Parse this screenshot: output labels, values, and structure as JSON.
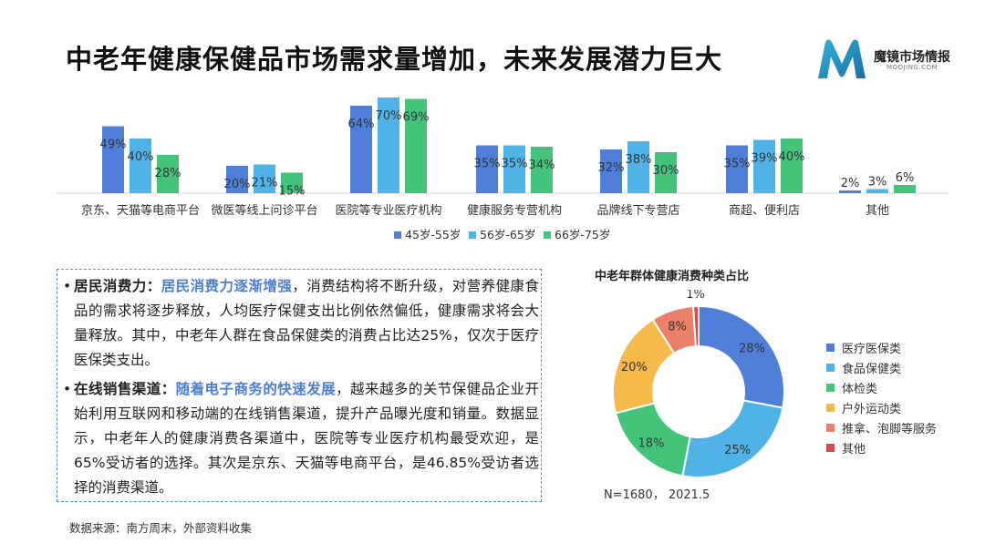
{
  "header": {
    "title": "中老年健康保健品市场需求量增加，未来发展潜力巨大"
  },
  "logo": {
    "name": "魔镜市场情报",
    "sub": "MOOJING.COM"
  },
  "chart_data": [
    {
      "type": "bar",
      "categories": [
        "京东、天猫等电商平台",
        "微医等线上问诊平台",
        "医院等专业医疗机构",
        "健康服务专营机构",
        "品牌线下专营店",
        "商超、便利店",
        "其他"
      ],
      "series": [
        {
          "name": "45岁-55岁",
          "color": "#4f7fd8",
          "values": [
            49,
            20,
            64,
            35,
            32,
            35,
            2
          ]
        },
        {
          "name": "56岁-65岁",
          "color": "#4fb3e8",
          "values": [
            40,
            21,
            70,
            35,
            38,
            39,
            3
          ]
        },
        {
          "name": "66岁-75岁",
          "color": "#43c47a",
          "values": [
            28,
            15,
            69,
            34,
            30,
            40,
            6
          ]
        }
      ],
      "value_suffix": "%",
      "ylim": [
        0,
        80
      ],
      "legend": "bottom"
    },
    {
      "type": "pie",
      "title": "中老年群体健康消费种类占比",
      "labels": [
        "医疗医保类",
        "食品保健类",
        "体检类",
        "户外运动类",
        "推拿、泡脚等服务",
        "其他"
      ],
      "values": [
        28,
        25,
        18,
        20,
        8,
        1
      ],
      "value_suffix": "%",
      "colors": [
        "#4f7fd8",
        "#4fb3e8",
        "#43c47a",
        "#f6b94a",
        "#ea7f6a",
        "#e0474c"
      ],
      "note": "N=1680，  2021.5",
      "legend": "right"
    }
  ],
  "text_box": {
    "p1": {
      "bullet": "•",
      "lead": "居民消费力：",
      "highlight": "居民消费力逐渐增强",
      "body": "，消费结构将不断升级，对营养健康食品的需求将逐步释放，人均医疗保健支出比例依然偏低，健康需求将会大量释放。其中，中老年人群在食品保健类的消费占比达25%，仅次于医疗医保类支出。"
    },
    "p2": {
      "bullet": "•",
      "lead": "在线销售渠道：",
      "highlight": "随着电子商务的快速发展",
      "body": "，越来越多的关节保健品企业开始利用互联网和移动端的在线销售渠道，提升产品曝光度和销量。数据显示，中老年人的健康消费各渠道中，医院等专业医疗机构最受欢迎，是65%受访者的选择。其次是京东、天猫等电商平台，是46.85%受访者选择的消费渠道。"
    }
  },
  "footer": {
    "source": "数据来源：南方周末，外部资料收集"
  }
}
